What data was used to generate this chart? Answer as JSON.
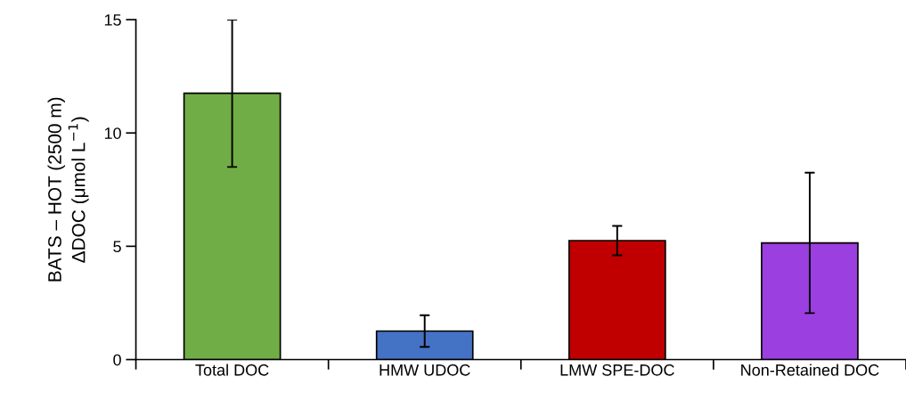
{
  "chart_data": {
    "type": "bar",
    "ylabel": "BATS – HOT (2500 m)\nΔDOC (μmol L$^{−1}$)",
    "categories": [
      "Total DOC",
      "HMW UDOC",
      "LMW SPE-DOC",
      "Non-Retained DOC"
    ],
    "values": [
      11.75,
      1.26,
      5.25,
      5.15
    ],
    "errors": [
      3.25,
      0.7,
      0.65,
      3.1
    ],
    "colors": [
      "#70ad47",
      "#4472c4",
      "#c00000",
      "#9b3fe0"
    ],
    "ylim": [
      0,
      15
    ],
    "yticks": [
      0,
      5,
      10,
      15
    ],
    "grid": false
  }
}
